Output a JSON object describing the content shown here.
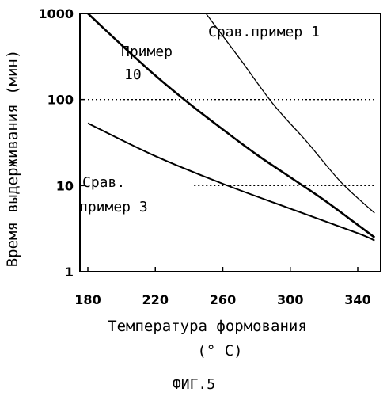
{
  "chart_data": {
    "type": "line",
    "title": "",
    "xlabel": "Температура формования",
    "xlabel_unit": "(° C)",
    "ylabel": "Время выдерживания (мин)",
    "figure_caption": "ФИГ.5",
    "x_ticks": [
      "180",
      "220",
      "260",
      "300",
      "340"
    ],
    "y_ticks": [
      "1000",
      "100",
      "10",
      "1"
    ],
    "xlim": [
      180,
      350
    ],
    "ylim": [
      1,
      1000
    ],
    "y_scale": "log",
    "grid": false,
    "reference_lines": [
      {
        "y": 100,
        "style": "dotted",
        "x_start": 180,
        "x_end": 350
      },
      {
        "y": 10,
        "style": "dotted",
        "x_start": 243,
        "x_end": 350
      }
    ],
    "series": [
      {
        "name": "Срав.пример 1",
        "label_line1": "Срав.пример 1",
        "label_line2": "",
        "stroke_width": 1.3,
        "x": [
          250,
          270,
          290,
          310,
          330,
          350
        ],
        "y": [
          1000,
          300,
          88,
          32,
          11,
          4.8
        ]
      },
      {
        "name": "Пример 10",
        "label_line1": "Пример",
        "label_line2": "10",
        "stroke_width": 2.6,
        "x": [
          180,
          200,
          220,
          240,
          260,
          280,
          300,
          320,
          340,
          350
        ],
        "y": [
          1000,
          430,
          190,
          90,
          45,
          23,
          12.5,
          6.8,
          3.5,
          2.5
        ]
      },
      {
        "name": "Срав. пример 3",
        "label_line1": "Срав.",
        "label_line2": "пример 3",
        "stroke_width": 2.0,
        "x": [
          180,
          220,
          260,
          300,
          340,
          350
        ],
        "y": [
          53,
          22,
          10.5,
          5.4,
          2.8,
          2.3
        ]
      }
    ]
  }
}
